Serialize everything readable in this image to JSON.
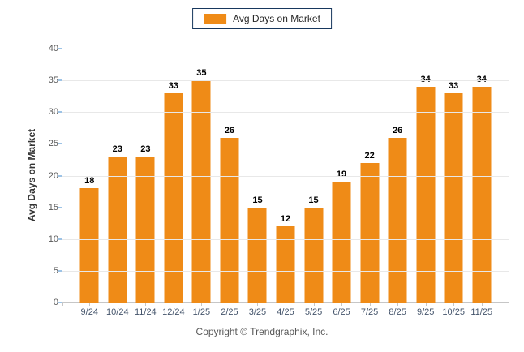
{
  "legend": {
    "label": "Avg Days on Market",
    "border_color": "#17375D",
    "swatch_color": "#EF8B17"
  },
  "footer": {
    "copyright": "Copyright © Trendgraphix, Inc."
  },
  "chart_data": {
    "type": "bar",
    "title": "",
    "categories": [
      "9/24",
      "10/24",
      "11/24",
      "12/24",
      "1/25",
      "2/25",
      "3/25",
      "4/25",
      "5/25",
      "6/25",
      "7/25",
      "8/25",
      "9/25",
      "10/25",
      "11/25"
    ],
    "values": [
      18,
      23,
      23,
      33,
      35,
      26,
      15,
      12,
      15,
      19,
      22,
      26,
      34,
      33,
      34
    ],
    "xlabel": "",
    "ylabel": "Avg Days on Market",
    "ylim": [
      0,
      40
    ],
    "ytick_step": 5,
    "grid": true,
    "legend_position": "top-center",
    "value_labels": true,
    "bar_color": "#EF8B17",
    "grid_color": "#E8E8E8",
    "axis_line_color": "#C6C6C6",
    "y_tick_mark_color": "#9DC3E6",
    "y_tick_label_color": "#595959",
    "x_tick_label_color": "#44546B"
  }
}
